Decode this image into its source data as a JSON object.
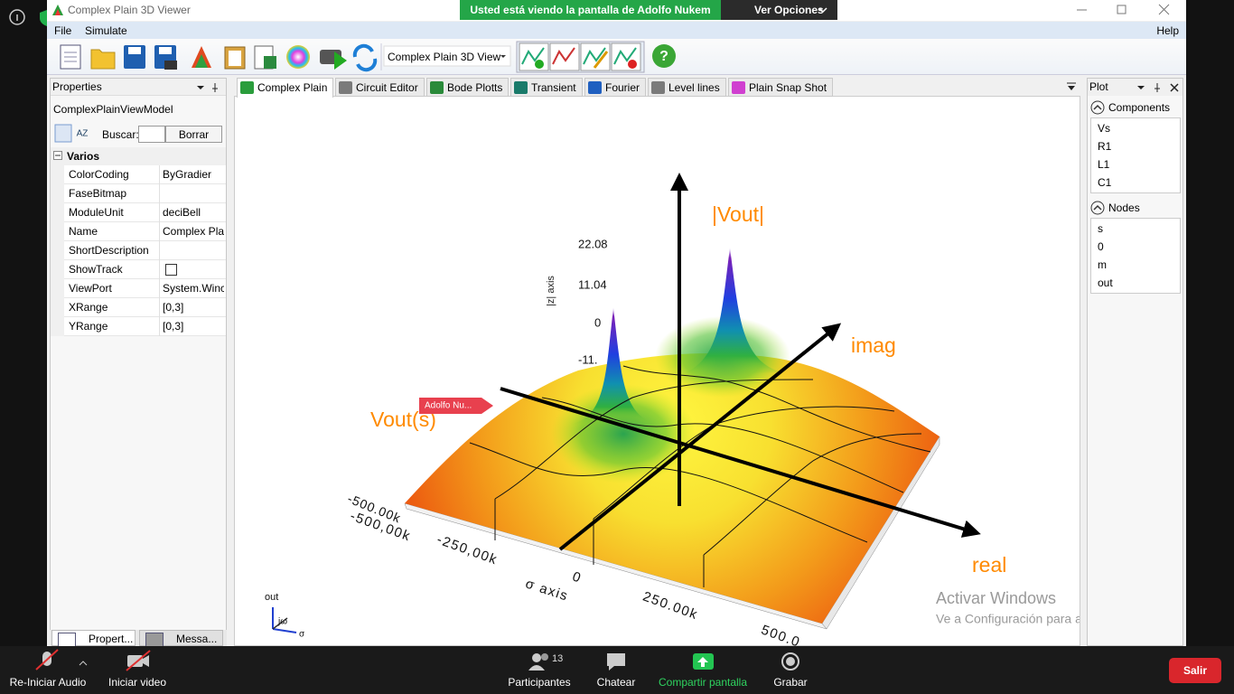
{
  "meeting": {
    "banner": "Usted está viendo la pantalla de Adolfo Nukem",
    "options": "Ver Opciones",
    "audio": "Re-Iniciar Audio",
    "video": "Iniciar video",
    "participants": "Participantes",
    "participant_count": "13",
    "chat": "Chatear",
    "share": "Compartir pantalla",
    "record": "Grabar",
    "leave": "Salir"
  },
  "window": {
    "title": "Complex Plain 3D Viewer",
    "menu": [
      "File",
      "Simulate"
    ],
    "help": "Help",
    "view_selector": "Complex Plain 3D View"
  },
  "properties": {
    "title": "Properties",
    "object": "ComplexPlainViewModel",
    "search_label": "Buscar:",
    "clear_button": "Borrar",
    "category": "Varios",
    "rows": [
      {
        "name": "ColorCoding",
        "value": "ByGradier"
      },
      {
        "name": "FaseBitmap"
      },
      {
        "name": "ModuleUnit",
        "value": "deciBell"
      },
      {
        "name": "Name",
        "value": "Complex Pla"
      },
      {
        "name": "ShortDescription"
      },
      {
        "name": "ShowTrack"
      },
      {
        "name": "ViewPort",
        "value": "System.Winc"
      },
      {
        "name": "XRange",
        "value": "[0,3]"
      },
      {
        "name": "YRange",
        "value": "[0,3]"
      }
    ],
    "tabs": [
      "Propert...",
      "Messa..."
    ]
  },
  "document_tabs": [
    "Complex Plain",
    "Circuit Editor",
    "Bode Plotts",
    "Transient",
    "Fourier",
    "Level lines",
    "Plain Snap Shot"
  ],
  "plot_panel": {
    "title": "Plot",
    "groups": [
      {
        "name": "Components",
        "items": [
          "Vs",
          "R1",
          "L1",
          "C1"
        ]
      },
      {
        "name": "Nodes",
        "items": [
          "s",
          "0",
          "m",
          "out"
        ]
      }
    ]
  },
  "viewer": {
    "magnitude_label": "|Vout|",
    "imag_label": "imag",
    "function_label": "Vout(s)",
    "real_label": "real",
    "z_axis": "|z| axis",
    "z_ticks": [
      "22.08",
      "11.04",
      "0",
      "-11."
    ],
    "back_tick": "-500.00k",
    "x_ticks": [
      "-500,00k",
      "-250,00k",
      "0",
      "250.00k",
      "500.0"
    ],
    "x_axis": "σ axis",
    "pointer": "Adolfo Nu...",
    "orientation": {
      "node": "out",
      "vertical": "jω",
      "horizontal": "σ"
    }
  },
  "watermark": {
    "title": "Activar Windows",
    "subtitle": "Ve a Configuración para activar Windows."
  }
}
